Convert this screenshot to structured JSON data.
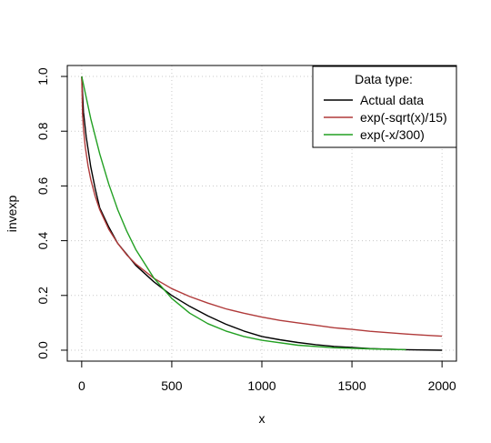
{
  "chart_data": {
    "type": "line",
    "xlabel": "x",
    "ylabel": "invexp",
    "xlim": [
      -80,
      2080
    ],
    "ylim": [
      -0.04,
      1.04
    ],
    "x_ticks": [
      0,
      500,
      1000,
      1500,
      2000
    ],
    "y_ticks": [
      0.0,
      0.2,
      0.4,
      0.6,
      0.8,
      1.0
    ],
    "x_tick_labels": [
      "0",
      "500",
      "1000",
      "1500",
      "2000"
    ],
    "y_tick_labels": [
      "0.0",
      "0.2",
      "0.4",
      "0.6",
      "0.8",
      "1.0"
    ],
    "grid": true,
    "legend": {
      "title": "Data type:",
      "position": "top-right"
    },
    "series": [
      {
        "name": "Actual data",
        "color": "#000000",
        "x": [
          0,
          10,
          25,
          50,
          75,
          100,
          150,
          200,
          250,
          300,
          350,
          400,
          450,
          500,
          600,
          700,
          800,
          900,
          1000,
          1100,
          1200,
          1300,
          1400,
          1500,
          1600,
          1700,
          1800,
          2000
        ],
        "y": [
          1.0,
          0.87,
          0.78,
          0.67,
          0.59,
          0.52,
          0.45,
          0.39,
          0.35,
          0.31,
          0.28,
          0.25,
          0.225,
          0.2,
          0.16,
          0.125,
          0.095,
          0.07,
          0.05,
          0.038,
          0.028,
          0.02,
          0.014,
          0.01,
          0.006,
          0.004,
          0.002,
          0.0
        ]
      },
      {
        "name": "exp(-sqrt(x)/15)",
        "color": "#b03a3a",
        "x": [
          0,
          5,
          10,
          20,
          35,
          50,
          75,
          100,
          150,
          200,
          250,
          300,
          400,
          500,
          600,
          700,
          800,
          900,
          1000,
          1100,
          1200,
          1300,
          1400,
          1500,
          1600,
          1700,
          1800,
          1900,
          2000
        ],
        "y": [
          1.0,
          0.862,
          0.81,
          0.742,
          0.674,
          0.624,
          0.562,
          0.513,
          0.442,
          0.39,
          0.348,
          0.315,
          0.263,
          0.225,
          0.196,
          0.172,
          0.151,
          0.135,
          0.121,
          0.109,
          0.1,
          0.091,
          0.082,
          0.076,
          0.069,
          0.064,
          0.059,
          0.055,
          0.051
        ]
      },
      {
        "name": "exp(-x/300)",
        "color": "#22a022",
        "x": [
          0,
          50,
          100,
          150,
          200,
          250,
          300,
          400,
          500,
          600,
          700,
          800,
          900,
          1000,
          1200,
          1400,
          1600,
          1800
        ],
        "y": [
          1.0,
          0.846,
          0.717,
          0.607,
          0.513,
          0.435,
          0.368,
          0.264,
          0.189,
          0.135,
          0.097,
          0.07,
          0.05,
          0.036,
          0.018,
          0.009,
          0.005,
          0.002
        ]
      }
    ]
  }
}
